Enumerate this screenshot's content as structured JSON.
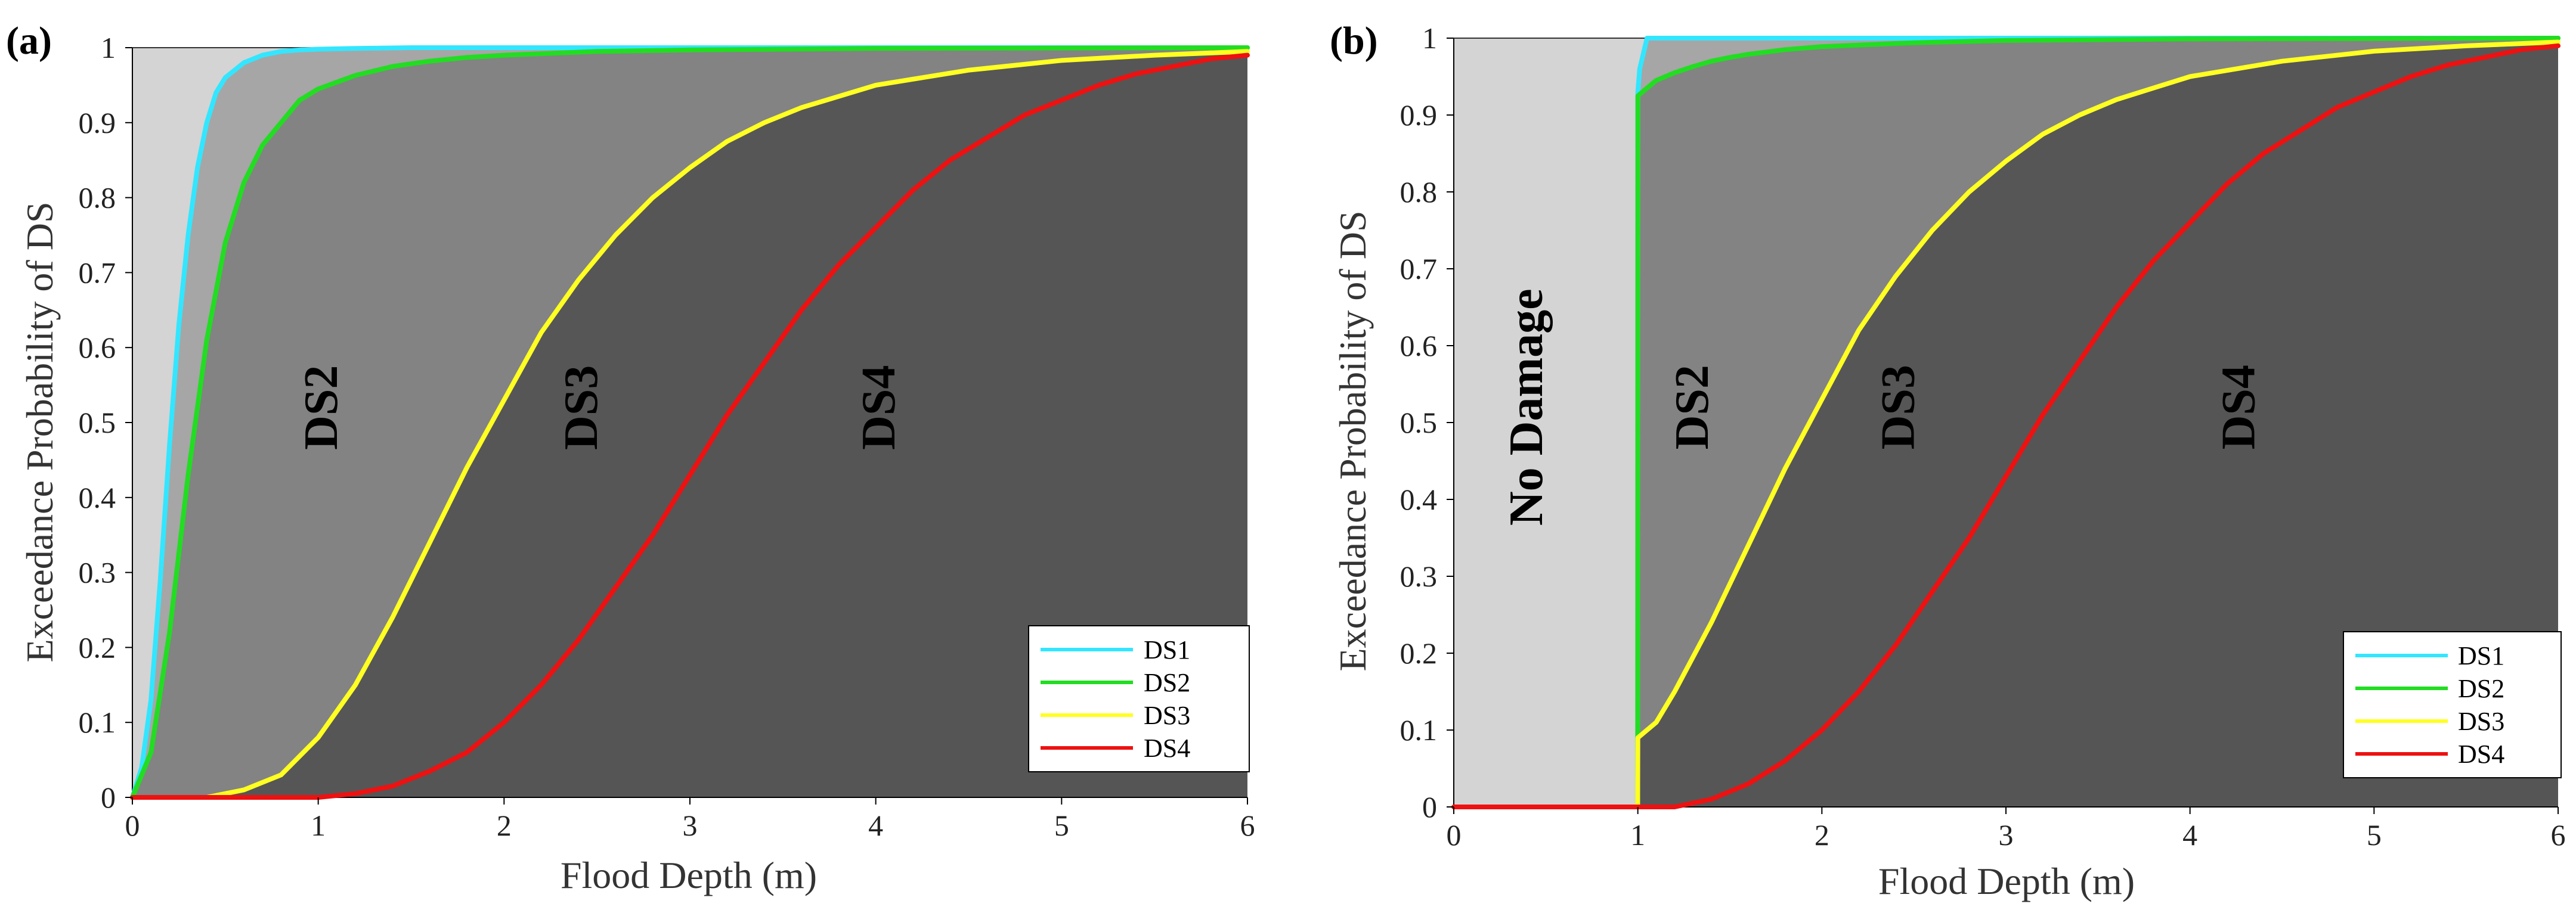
{
  "figure": {
    "label_a": "(a)",
    "label_b": "(b)"
  },
  "colors": {
    "DS1": "#33e6ff",
    "DS2": "#22dd22",
    "DS3": "#ffff22",
    "DS4": "#ee1111",
    "region_ds1": "#d4d4d4",
    "region_ds2": "#a6a6a6",
    "region_ds3": "#838383",
    "region_ds4": "#565656",
    "no_damage": "#d4d4d4"
  },
  "chart_data": [
    {
      "type": "line",
      "panel": "(a)",
      "title": "",
      "xlabel": "Flood Depth (m)",
      "ylabel": "Exceedance Probability of DS",
      "xlim": [
        0,
        6
      ],
      "ylim": [
        0,
        1
      ],
      "xticks": [
        "0",
        "1",
        "2",
        "3",
        "4",
        "5",
        "6"
      ],
      "yticks": [
        "0",
        "0.1",
        "0.2",
        "0.3",
        "0.4",
        "0.5",
        "0.6",
        "0.7",
        "0.8",
        "0.9",
        "1"
      ],
      "legend": [
        "DS1",
        "DS2",
        "DS3",
        "DS4"
      ],
      "legend_position": "bottom-right",
      "region_labels": [
        {
          "text": "DS2",
          "x": 1.1,
          "y": 0.52
        },
        {
          "text": "DS3",
          "x": 2.5,
          "y": 0.52
        },
        {
          "text": "DS4",
          "x": 4.1,
          "y": 0.52
        }
      ],
      "series": [
        {
          "name": "DS1",
          "x": [
            0,
            0.05,
            0.1,
            0.15,
            0.2,
            0.25,
            0.3,
            0.35,
            0.4,
            0.45,
            0.5,
            0.6,
            0.7,
            0.8,
            0.9,
            1.0,
            1.2,
            1.5,
            2.0,
            3.0,
            4.0,
            5.0,
            6.0
          ],
          "values": [
            0.0,
            0.04,
            0.13,
            0.29,
            0.47,
            0.63,
            0.75,
            0.84,
            0.9,
            0.94,
            0.96,
            0.98,
            0.99,
            0.995,
            0.997,
            0.998,
            0.999,
            1.0,
            1.0,
            1.0,
            1.0,
            1.0,
            1.0
          ]
        },
        {
          "name": "DS2",
          "x": [
            0,
            0.1,
            0.2,
            0.3,
            0.4,
            0.5,
            0.6,
            0.7,
            0.8,
            0.9,
            1.0,
            1.2,
            1.4,
            1.6,
            1.8,
            2.0,
            2.5,
            3.0,
            4.0,
            5.0,
            6.0
          ],
          "values": [
            0.0,
            0.06,
            0.22,
            0.43,
            0.61,
            0.74,
            0.82,
            0.87,
            0.9,
            0.93,
            0.945,
            0.963,
            0.975,
            0.982,
            0.987,
            0.99,
            0.995,
            0.997,
            0.999,
            0.9995,
            1.0
          ]
        },
        {
          "name": "DS3",
          "x": [
            0,
            0.4,
            0.6,
            0.8,
            1.0,
            1.2,
            1.4,
            1.6,
            1.8,
            2.0,
            2.2,
            2.4,
            2.6,
            2.8,
            3.0,
            3.2,
            3.4,
            3.6,
            3.8,
            4.0,
            4.5,
            5.0,
            5.5,
            6.0
          ],
          "values": [
            0.0,
            0.0,
            0.01,
            0.03,
            0.08,
            0.15,
            0.24,
            0.34,
            0.44,
            0.53,
            0.62,
            0.69,
            0.75,
            0.8,
            0.84,
            0.875,
            0.9,
            0.92,
            0.935,
            0.95,
            0.97,
            0.983,
            0.99,
            0.995
          ]
        },
        {
          "name": "DS4",
          "x": [
            0,
            1.0,
            1.2,
            1.4,
            1.6,
            1.8,
            2.0,
            2.2,
            2.4,
            2.6,
            2.8,
            3.0,
            3.2,
            3.4,
            3.6,
            3.8,
            4.0,
            4.2,
            4.4,
            4.6,
            4.8,
            5.0,
            5.2,
            5.4,
            5.6,
            5.8,
            6.0
          ],
          "values": [
            0.0,
            0.0,
            0.005,
            0.015,
            0.035,
            0.06,
            0.1,
            0.15,
            0.21,
            0.28,
            0.35,
            0.43,
            0.51,
            0.58,
            0.65,
            0.71,
            0.76,
            0.81,
            0.85,
            0.88,
            0.91,
            0.93,
            0.95,
            0.965,
            0.975,
            0.985,
            0.99
          ]
        }
      ]
    },
    {
      "type": "line",
      "panel": "(b)",
      "title": "",
      "xlabel": "Flood Depth (m)",
      "ylabel": "Exceedance Probability of DS",
      "xlim": [
        0,
        6
      ],
      "ylim": [
        0,
        1
      ],
      "xticks": [
        "0",
        "1",
        "2",
        "3",
        "4",
        "5",
        "6"
      ],
      "yticks": [
        "0",
        "0.1",
        "0.2",
        "0.3",
        "0.4",
        "0.5",
        "0.6",
        "0.7",
        "0.8",
        "0.9",
        "1"
      ],
      "legend": [
        "DS1",
        "DS2",
        "DS3",
        "DS4"
      ],
      "legend_position": "bottom-right",
      "region_labels": [
        {
          "text": "No Damage",
          "x": 0.48,
          "y": 0.52
        },
        {
          "text": "DS2",
          "x": 1.38,
          "y": 0.52
        },
        {
          "text": "DS3",
          "x": 2.5,
          "y": 0.52
        },
        {
          "text": "DS4",
          "x": 4.35,
          "y": 0.52
        }
      ],
      "series": [
        {
          "name": "DS1",
          "x": [
            0,
            0.999,
            1.0,
            1.01,
            1.05,
            2.0,
            6.0
          ],
          "values": [
            0.0,
            0.0,
            0.93,
            0.96,
            1.0,
            1.0,
            1.0
          ]
        },
        {
          "name": "DS2",
          "x": [
            0,
            0.999,
            1.0,
            1.05,
            1.1,
            1.2,
            1.3,
            1.4,
            1.5,
            1.6,
            1.8,
            2.0,
            2.5,
            3.0,
            4.0,
            5.0,
            6.0
          ],
          "values": [
            0.0,
            0.0,
            0.925,
            0.935,
            0.945,
            0.955,
            0.963,
            0.97,
            0.975,
            0.979,
            0.985,
            0.989,
            0.994,
            0.997,
            0.999,
            0.9995,
            1.0
          ]
        },
        {
          "name": "DS3",
          "x": [
            0,
            0.999,
            1.0,
            1.1,
            1.2,
            1.4,
            1.6,
            1.8,
            2.0,
            2.2,
            2.4,
            2.6,
            2.8,
            3.0,
            3.2,
            3.4,
            3.6,
            3.8,
            4.0,
            4.5,
            5.0,
            5.5,
            6.0
          ],
          "values": [
            0.0,
            0.0,
            0.09,
            0.11,
            0.15,
            0.24,
            0.34,
            0.44,
            0.53,
            0.62,
            0.69,
            0.75,
            0.8,
            0.84,
            0.875,
            0.9,
            0.92,
            0.935,
            0.95,
            0.97,
            0.983,
            0.99,
            0.995
          ]
        },
        {
          "name": "DS4",
          "x": [
            0,
            1.2,
            1.4,
            1.6,
            1.8,
            2.0,
            2.2,
            2.4,
            2.6,
            2.8,
            3.0,
            3.2,
            3.4,
            3.6,
            3.8,
            4.0,
            4.2,
            4.4,
            4.6,
            4.8,
            5.0,
            5.2,
            5.4,
            5.6,
            5.8,
            6.0
          ],
          "values": [
            0.0,
            0.0,
            0.01,
            0.03,
            0.06,
            0.1,
            0.15,
            0.21,
            0.28,
            0.35,
            0.43,
            0.51,
            0.58,
            0.65,
            0.71,
            0.76,
            0.81,
            0.85,
            0.88,
            0.91,
            0.93,
            0.95,
            0.965,
            0.975,
            0.985,
            0.99
          ]
        }
      ]
    }
  ]
}
